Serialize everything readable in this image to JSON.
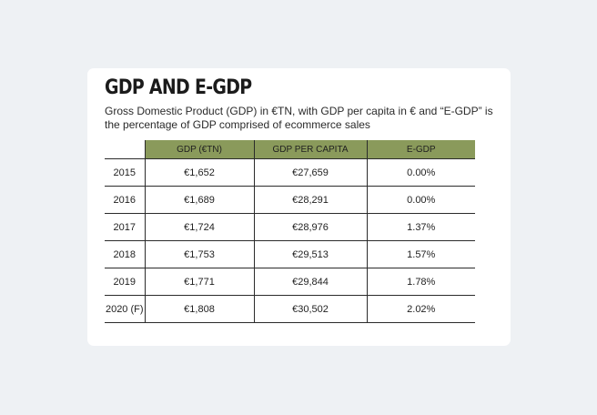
{
  "card": {
    "title": "GDP AND E-GDP",
    "subtitle": "Gross Domestic Product (GDP) in €TN, with GDP per capita in € and “E-GDP” is the percentage of GDP comprised of ecommerce sales"
  },
  "table": {
    "headers": [
      "",
      "GDP (€TN)",
      "GDP PER CAPITA",
      "E-GDP"
    ],
    "rows": [
      [
        "2015",
        "€1,652",
        "€27,659",
        "0.00%"
      ],
      [
        "2016",
        "€1,689",
        "€28,291",
        "0.00%"
      ],
      [
        "2017",
        "€1,724",
        "€28,976",
        "1.37%"
      ],
      [
        "2018",
        "€1,753",
        "€29,513",
        "1.57%"
      ],
      [
        "2019",
        "€1,771",
        "€29,844",
        "1.78%"
      ],
      [
        "2020 (F)",
        "€1,808",
        "€30,502",
        "2.02%"
      ]
    ]
  },
  "colors": {
    "header_fill": "#8a9a5b",
    "page_background": "#eef1f4",
    "card_background": "#ffffff"
  }
}
